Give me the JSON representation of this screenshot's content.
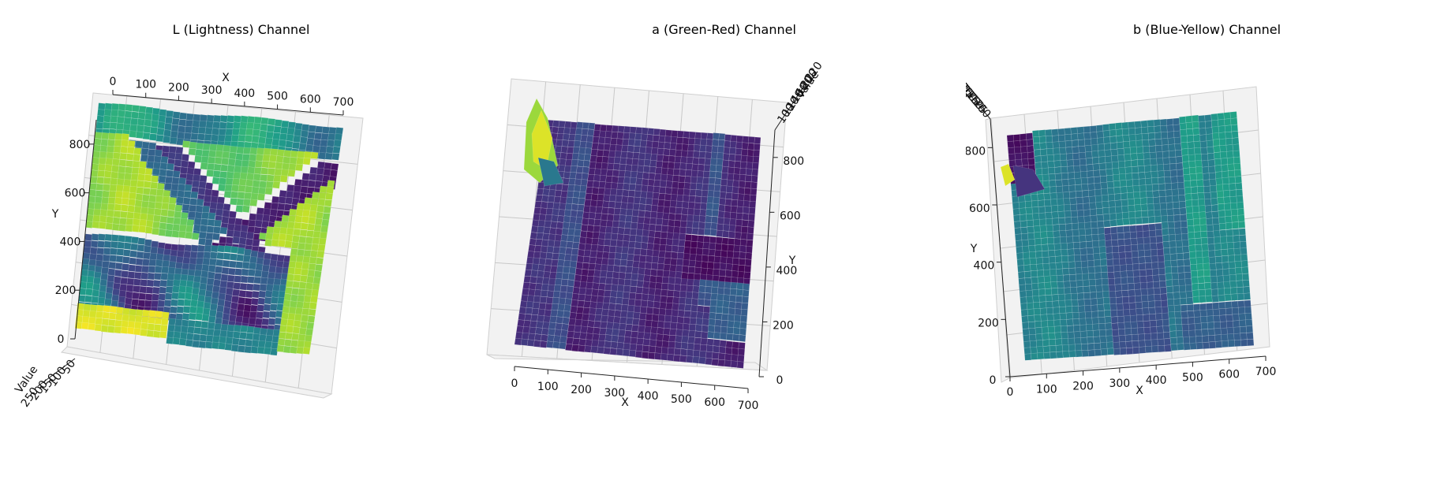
{
  "figure": {
    "panels": [
      {
        "title": "L (Lightness) Channel"
      },
      {
        "title": "a (Green-Red) Channel"
      },
      {
        "title": "b (Blue-Yellow) Channel"
      }
    ]
  },
  "colormap": "viridis",
  "chart_data": [
    {
      "type": "surface3d",
      "title": "L (Lightness) Channel",
      "xlabel": "X",
      "ylabel": "Y",
      "zlabel": "Value",
      "xticks": [
        0,
        100,
        200,
        300,
        400,
        500,
        600,
        700
      ],
      "yticks": [
        0,
        200,
        400,
        600,
        800
      ],
      "zticks": [
        50,
        100,
        150,
        200,
        250
      ],
      "xlim": [
        0,
        700
      ],
      "ylim": [
        0,
        900
      ],
      "zlim": [
        0,
        255
      ],
      "surface": "L channel of image (value range 0–255)"
    },
    {
      "type": "surface3d",
      "title": "a (Green-Red) Channel",
      "xlabel": "X",
      "ylabel": "Y",
      "zlabel": "Value",
      "xticks": [
        0,
        100,
        200,
        300,
        400,
        500,
        600,
        700
      ],
      "yticks": [
        0,
        200,
        400,
        600,
        800
      ],
      "zticks": [
        100,
        120,
        140,
        160,
        180,
        200,
        220
      ],
      "xlim": [
        0,
        700
      ],
      "ylim": [
        0,
        900
      ],
      "zlim": [
        100,
        220
      ],
      "surface": "a channel of image (value range 100–220)"
    },
    {
      "type": "surface3d",
      "title": "b (Blue-Yellow) Channel",
      "xlabel": "X",
      "ylabel": "Y",
      "zlabel": "Value",
      "xticks": [
        0,
        100,
        200,
        300,
        400,
        500,
        600,
        700
      ],
      "yticks": [
        0,
        200,
        400,
        600,
        800
      ],
      "zticks": [
        100,
        125,
        150,
        175,
        200,
        225,
        250
      ],
      "xlim": [
        0,
        700
      ],
      "ylim": [
        0,
        900
      ],
      "zlim": [
        100,
        250
      ],
      "surface": "b channel of image (value range 100–250)"
    }
  ]
}
